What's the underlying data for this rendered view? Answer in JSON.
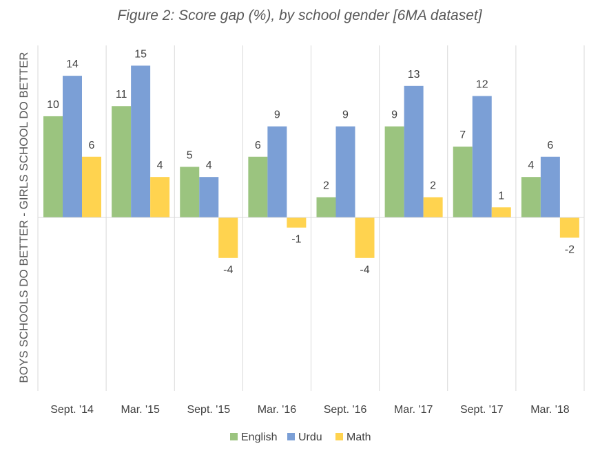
{
  "chart_data": {
    "type": "bar",
    "title": "Figure 2: Score gap (%), by school gender [6MA dataset]",
    "ylabel": "BOYS SCHOOLS DO BETTER - GIRLS SCHOOL DO BETTER",
    "xlabel": "",
    "categories": [
      "Sept. '14",
      "Mar. '15",
      "Sept. '15",
      "Mar. '16",
      "Sept. '16",
      "Mar. '17",
      "Sept. '17",
      "Mar. '18"
    ],
    "series": [
      {
        "name": "English",
        "color": "#9bc47f",
        "values": [
          10,
          11,
          5,
          6,
          2,
          9,
          7,
          4
        ]
      },
      {
        "name": "Urdu",
        "color": "#7b9fd6",
        "values": [
          14,
          15,
          4,
          9,
          9,
          13,
          12,
          6
        ]
      },
      {
        "name": "Math",
        "color": "#ffd34f",
        "values": [
          6,
          4,
          -4,
          -1,
          -4,
          2,
          1,
          -2
        ]
      }
    ],
    "ylim": [
      -17,
      17
    ],
    "grid": "vertical category dividers",
    "legend": "bottom-center"
  }
}
